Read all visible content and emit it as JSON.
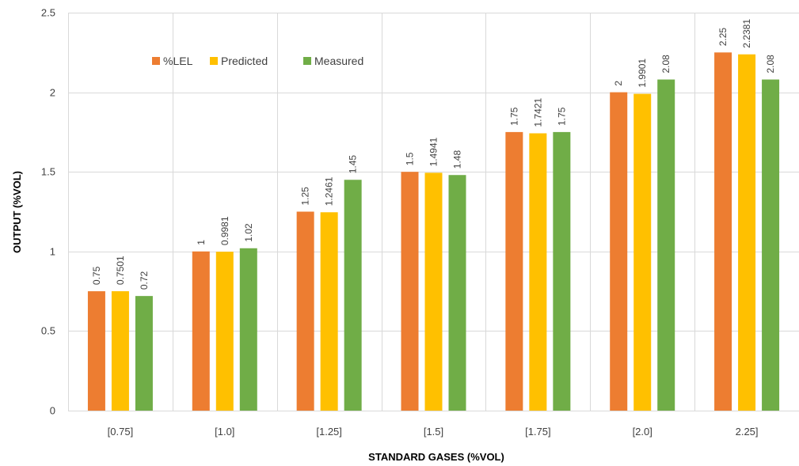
{
  "chart_data": {
    "type": "bar",
    "title": "",
    "xlabel": "STANDARD GASES (%VOL)",
    "ylabel": "OUTPUT (%VOL)",
    "categories": [
      "[0.75]",
      "[1.0]",
      "[1.25]",
      "[1.5]",
      "[1.75]",
      "[2.0]",
      "2.25]"
    ],
    "series": [
      {
        "name": "%LEL",
        "color": "#ED7D31",
        "values": [
          0.75,
          1,
          1.25,
          1.5,
          1.75,
          2,
          2.25
        ],
        "labels": [
          "0.75",
          "1",
          "1.25",
          "1.5",
          "1.75",
          "2",
          "2.25"
        ]
      },
      {
        "name": "Predicted",
        "color": "#FFC000",
        "values": [
          0.7501,
          0.9981,
          1.2461,
          1.4941,
          1.7421,
          1.9901,
          2.2381
        ],
        "labels": [
          "0.7501",
          "0.9981",
          "1.2461",
          "1.4941",
          "1.7421",
          "1.9901",
          "2.2381"
        ]
      },
      {
        "name": "Measured",
        "color": "#70AD47",
        "values": [
          0.72,
          1.02,
          1.45,
          1.48,
          1.75,
          2.08,
          2.08
        ],
        "labels": [
          "0.72",
          "1.02",
          "1.45",
          "1.48",
          "1.75",
          "2.08",
          "2.08"
        ]
      }
    ],
    "ylim": [
      0,
      2.5
    ],
    "yticks": [
      "0",
      "0.5",
      "1",
      "1.5",
      "2",
      "2.5"
    ],
    "grid": true,
    "legend_position": "top-left"
  }
}
